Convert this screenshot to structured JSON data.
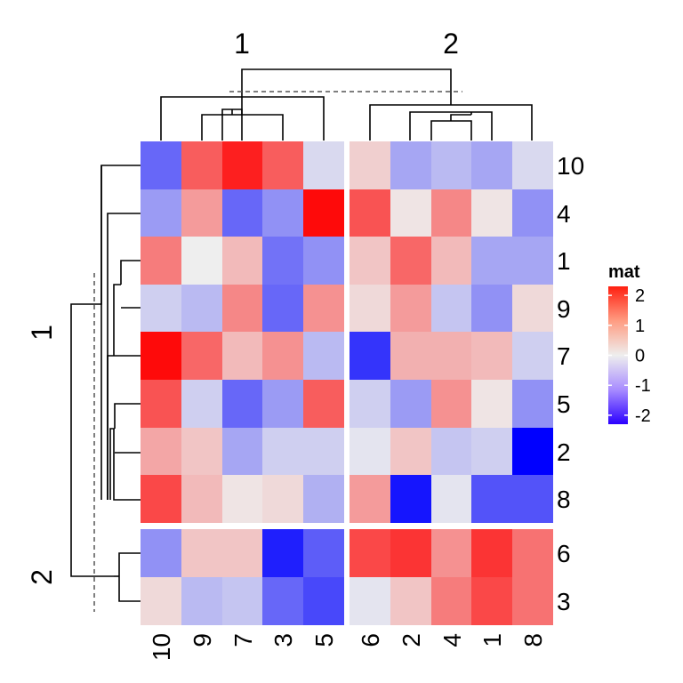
{
  "chart_data": {
    "type": "heatmap",
    "title": "",
    "legend": {
      "title": "mat",
      "ticks": [
        2,
        1,
        0,
        -1,
        -2
      ],
      "tick_labels": [
        "2",
        "1",
        "0",
        "-1",
        "-2"
      ],
      "colors": {
        "low": "#0000ff",
        "mid": "#ffffff",
        "high": "#ff0000"
      },
      "placement": "right"
    },
    "column_slices": [
      {
        "label": "1",
        "columns": [
          "10",
          "9",
          "7",
          "3",
          "5"
        ]
      },
      {
        "label": "2",
        "columns": [
          "6",
          "2",
          "4",
          "1",
          "8"
        ]
      }
    ],
    "row_slices": [
      {
        "label": "1",
        "rows": [
          "10",
          "4",
          "1",
          "9",
          "7",
          "5",
          "2",
          "8"
        ]
      },
      {
        "label": "2",
        "rows": [
          "6",
          "3"
        ]
      }
    ],
    "values": [
      [
        -1.3,
        1.4,
        2.0,
        1.4,
        -0.2,
        0.3,
        -0.7,
        -0.5,
        -0.7,
        -0.2
      ],
      [
        -0.8,
        0.8,
        -1.3,
        -0.9,
        2.2,
        1.5,
        0.1,
        1.0,
        0.1,
        -0.9
      ],
      [
        1.1,
        0.0,
        0.5,
        -1.2,
        -0.9,
        0.4,
        1.3,
        0.5,
        -0.7,
        -0.7
      ],
      [
        -0.3,
        -0.5,
        1.0,
        -1.3,
        0.9,
        0.2,
        0.8,
        -0.4,
        -0.9,
        0.2
      ],
      [
        2.2,
        1.3,
        0.5,
        0.9,
        -0.5,
        -1.8,
        0.6,
        0.6,
        0.5,
        -0.3
      ],
      [
        1.5,
        -0.3,
        -1.3,
        -0.8,
        1.4,
        -0.3,
        -0.8,
        0.9,
        0.1,
        -0.9
      ],
      [
        0.7,
        0.4,
        -0.7,
        -0.3,
        -0.3,
        -0.1,
        0.4,
        -0.4,
        -0.3,
        -2.3
      ],
      [
        1.6,
        0.5,
        0.1,
        0.2,
        -0.6,
        0.8,
        -2.1,
        -0.1,
        -1.5,
        -1.5
      ],
      [
        -0.9,
        0.4,
        0.4,
        -2.0,
        -1.4,
        1.6,
        1.8,
        0.9,
        1.8,
        1.2
      ],
      [
        0.2,
        -0.5,
        -0.4,
        -1.3,
        -1.6,
        -0.1,
        0.4,
        1.1,
        1.6,
        1.2
      ]
    ]
  }
}
